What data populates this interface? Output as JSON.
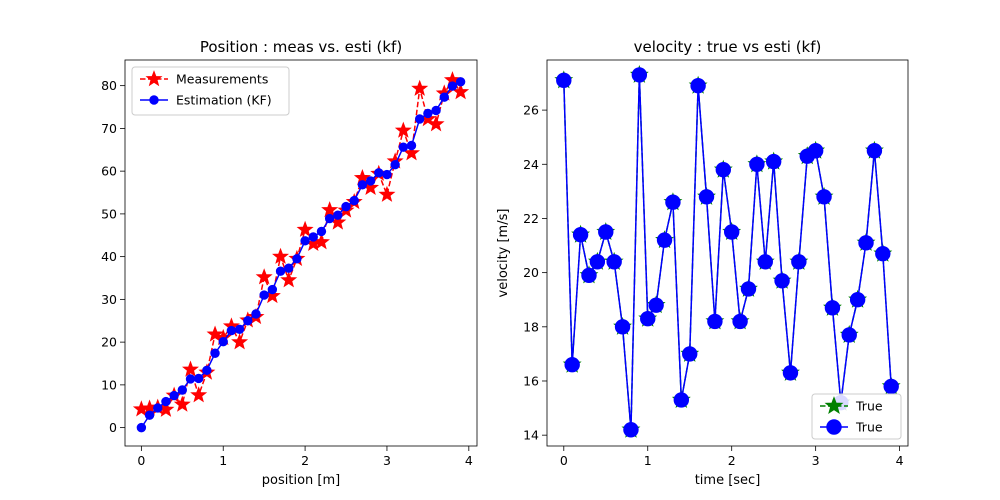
{
  "chart_data": [
    {
      "type": "line",
      "title": "Position : meas vs. esti (kf)",
      "xlabel": "position [m]",
      "ylabel": "",
      "xlim": [
        -0.2,
        4.1
      ],
      "ylim": [
        -4.3,
        86
      ],
      "xticks": [
        0,
        1,
        2,
        3,
        4
      ],
      "yticks": [
        0,
        10,
        20,
        30,
        40,
        50,
        60,
        70,
        80
      ],
      "legend": "upper-left",
      "x": [
        0.0,
        0.1,
        0.2,
        0.3,
        0.4,
        0.5,
        0.6,
        0.7,
        0.8,
        0.9,
        1.0,
        1.1,
        1.2,
        1.3,
        1.4,
        1.5,
        1.6,
        1.7,
        1.8,
        1.9,
        2.0,
        2.1,
        2.2,
        2.3,
        2.4,
        2.5,
        2.6,
        2.7,
        2.8,
        2.9,
        3.0,
        3.1,
        3.2,
        3.3,
        3.4,
        3.5,
        3.6,
        3.7,
        3.8,
        3.9
      ],
      "series": [
        {
          "name": "Measurements",
          "color": "#ff0000",
          "linestyle": "dashed",
          "marker": "star",
          "values": [
            4.3,
            4.5,
            4.7,
            4.2,
            7.5,
            5.4,
            13.6,
            7.6,
            12.9,
            21.8,
            21.0,
            23.7,
            20.0,
            25.1,
            25.9,
            35.2,
            30.8,
            40.0,
            34.5,
            39.5,
            46.3,
            43.0,
            43.4,
            50.9,
            48.0,
            50.8,
            52.8,
            58.4,
            56.1,
            59.4,
            54.5,
            62.3,
            69.5,
            64.2,
            79.3,
            72.2,
            71.0,
            78.2,
            81.3,
            78.5
          ]
        },
        {
          "name": "Estimation (KF)",
          "color": "#0000ff",
          "linestyle": "solid",
          "marker": "circle",
          "values": [
            0.0,
            2.9,
            4.6,
            6.1,
            7.5,
            8.8,
            11.4,
            11.5,
            13.4,
            17.4,
            20.1,
            22.7,
            23.0,
            25.0,
            26.6,
            31.0,
            32.3,
            36.6,
            37.3,
            39.5,
            43.7,
            44.6,
            45.9,
            48.9,
            49.7,
            51.7,
            53.1,
            56.8,
            57.7,
            59.6,
            59.2,
            61.5,
            65.6,
            66.0,
            72.2,
            73.5,
            74.2,
            77.3,
            79.9,
            80.9
          ]
        }
      ]
    },
    {
      "type": "line",
      "title": "velocity : true vs esti (kf)",
      "xlabel": "time [sec]",
      "ylabel": "velocity [m/s]",
      "xlim": [
        -0.2,
        4.1
      ],
      "ylim": [
        13.6,
        27.85
      ],
      "xticks": [
        0,
        1,
        2,
        3,
        4
      ],
      "yticks": [
        14,
        16,
        18,
        20,
        22,
        24,
        26
      ],
      "legend": "lower-right",
      "x": [
        0.0,
        0.1,
        0.2,
        0.3,
        0.4,
        0.5,
        0.6,
        0.7,
        0.8,
        0.9,
        1.0,
        1.1,
        1.2,
        1.3,
        1.4,
        1.5,
        1.6,
        1.7,
        1.8,
        1.9,
        2.0,
        2.1,
        2.2,
        2.3,
        2.4,
        2.5,
        2.6,
        2.7,
        2.8,
        2.9,
        3.0,
        3.1,
        3.2,
        3.3,
        3.4,
        3.5,
        3.6,
        3.7,
        3.8,
        3.9
      ],
      "series": [
        {
          "name": "True",
          "color": "#008000",
          "linestyle": "dashed",
          "marker": "star",
          "values": [
            27.1,
            16.6,
            21.4,
            19.9,
            20.4,
            21.5,
            20.4,
            18.0,
            14.2,
            27.3,
            18.3,
            18.8,
            21.2,
            22.6,
            15.3,
            17.0,
            26.9,
            22.8,
            18.2,
            23.8,
            21.5,
            18.2,
            19.4,
            24.0,
            20.4,
            24.1,
            19.7,
            16.3,
            20.4,
            24.3,
            24.5,
            22.8,
            18.7,
            15.2,
            17.7,
            19.0,
            21.1,
            24.5,
            20.7,
            15.8
          ]
        },
        {
          "name": "True",
          "color": "#0000ff",
          "linestyle": "solid",
          "marker": "circle",
          "values": [
            27.1,
            16.6,
            21.4,
            19.9,
            20.4,
            21.5,
            20.4,
            18.0,
            14.2,
            27.3,
            18.3,
            18.8,
            21.2,
            22.6,
            15.3,
            17.0,
            26.9,
            22.8,
            18.2,
            23.8,
            21.5,
            18.2,
            19.4,
            24.0,
            20.4,
            24.1,
            19.7,
            16.3,
            20.4,
            24.3,
            24.5,
            22.8,
            18.7,
            15.2,
            17.7,
            19.0,
            21.1,
            24.5,
            20.7,
            15.8
          ]
        }
      ]
    }
  ]
}
